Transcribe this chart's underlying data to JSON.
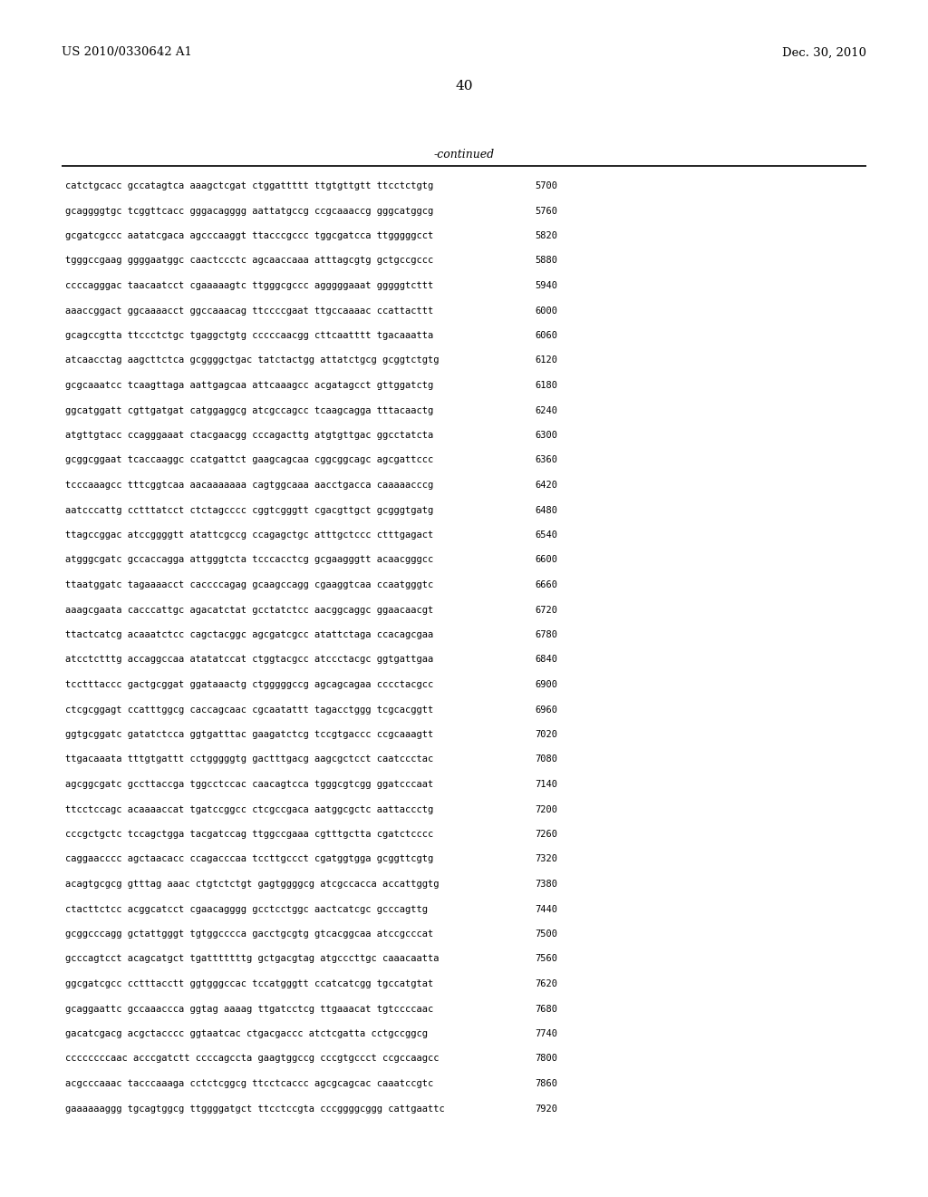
{
  "header_left": "US 2010/0330642 A1",
  "header_right": "Dec. 30, 2010",
  "page_number": "40",
  "continued_label": "-continued",
  "background_color": "#ffffff",
  "text_color": "#000000",
  "font_size": 7.5,
  "header_font_size": 9.5,
  "page_num_font_size": 11,
  "continued_font_size": 9,
  "sequence_lines": [
    [
      "catctgcacc gccatagtca aaagctcgat ctggattttt ttgtgttgtt ttcctctgtg",
      "5700"
    ],
    [
      "gcaggggtgc tcggttcacc gggacagggg aattatgccg ccgcaaaccg gggcatggcg",
      "5760"
    ],
    [
      "gcgatcgccc aatatcgaca agcccaaggt ttacccgccc tggcgatcca ttgggggcct",
      "5820"
    ],
    [
      "tgggccgaag ggggaatggc caactccctc agcaaccaaa atttagcgtg gctgccgccc",
      "5880"
    ],
    [
      "ccccagggac taacaatcct cgaaaaagtc ttgggcgccc agggggaaat gggggtcttt",
      "5940"
    ],
    [
      "aaaccggact ggcaaaacct ggccaaacag ttccccgaat ttgccaaaac ccattacttt",
      "6000"
    ],
    [
      "gcagccgtta ttccctctgc tgaggctgtg cccccaacgg cttcaatttt tgacaaatta",
      "6060"
    ],
    [
      "atcaacctag aagcttctca gcggggctgac tatctactgg attatctgcg gcggtctgtg",
      "6120"
    ],
    [
      "gcgcaaatcc tcaagttaga aattgagcaa attcaaagcc acgatagcct gttggatctg",
      "6180"
    ],
    [
      "ggcatggatt cgttgatgat catggaggcg atcgccagcc tcaagcagga tttacaactg",
      "6240"
    ],
    [
      "atgttgtacc ccagggaaat ctacgaacgg cccagacttg atgtgttgac ggcctatcta",
      "6300"
    ],
    [
      "gcggcggaat tcaccaaggc ccatgattct gaagcagcaa cggcggcagc agcgattccc",
      "6360"
    ],
    [
      "tcccaaagcc tttcggtcaa aacaaaaaaa cagtggcaaa aacctgacca caaaaacccg",
      "6420"
    ],
    [
      "aatcccattg cctttatcct ctctagcccc cggtcgggtt cgacgttgct gcgggtgatg",
      "6480"
    ],
    [
      "ttagccggac atccggggtt atattcgccg ccagagctgc atttgctccc ctttgagact",
      "6540"
    ],
    [
      "atgggcgatc gccaccagga attgggtcta tcccacctcg gcgaagggtt acaacgggcc",
      "6600"
    ],
    [
      "ttaatggatc tagaaaacct caccccagag gcaagccagg cgaaggtcaa ccaatgggtc",
      "6660"
    ],
    [
      "aaagcgaata cacccattgc agacatctat gcctatctcc aacggcaggc ggaacaacgt",
      "6720"
    ],
    [
      "ttactcatcg acaaatctcc cagctacggc agcgatcgcc atattctaga ccacagcgaa",
      "6780"
    ],
    [
      "atcctctttg accaggccaa atatatccat ctggtacgcc atccctacgc ggtgattgaa",
      "6840"
    ],
    [
      "tcctttaccc gactgcggat ggataaactg ctgggggccg agcagcagaa cccctacgcc",
      "6900"
    ],
    [
      "ctcgcggagt ccatttggcg caccagcaac cgcaatattt tagacctggg tcgcacggtt",
      "6960"
    ],
    [
      "ggtgcggatc gatatctcca ggtgatttac gaagatctcg tccgtgaccc ccgcaaagtt",
      "7020"
    ],
    [
      "ttgacaaata tttgtgattt cctgggggtg gactttgacg aagcgctcct caatccctac",
      "7080"
    ],
    [
      "agcggcgatc gccttaccga tggcctccac caacagtcca tgggcgtcgg ggatcccaat",
      "7140"
    ],
    [
      "ttcctccagc acaaaaccat tgatccggcc ctcgccgaca aatggcgctc aattaccctg",
      "7200"
    ],
    [
      "cccgctgctc tccagctgga tacgatccag ttggccgaaa cgtttgctta cgatctcccc",
      "7260"
    ],
    [
      "caggaacccc agctaacacc ccagacccaa tccttgccct cgatggtgga gcggttcgtg",
      "7320"
    ],
    [
      "acagtgcgcg gtttag aaac ctgtctctgt gagtggggcg atcgccacca accattggtg",
      "7380"
    ],
    [
      "ctacttctcc acggcatcct cgaacagggg gcctcctggc aactcatcgc gcccagttg",
      "7440"
    ],
    [
      "gcggcccagg gctattgggt tgtggcccca gacctgcgtg gtcacggcaa atccgcccat",
      "7500"
    ],
    [
      "gcccagtcct acagcatgct tgatttttttg gctgacgtag atgcccttgc caaacaatta",
      "7560"
    ],
    [
      "ggcgatcgcc cctttacctt ggtgggccac tccatgggtt ccatcatcgg tgccatgtat",
      "7620"
    ],
    [
      "gcaggaattc gccaaaccca ggtag aaaag ttgatcctcg ttgaaacat tgtccccaac",
      "7680"
    ],
    [
      "gacatcgacg acgctacccc ggtaatcac ctgacgaccc atctcgatta cctgccggcg",
      "7740"
    ],
    [
      "ccccccccaac acccgatctt ccccagccta gaagtggccg cccgtgccct ccgccaagcc",
      "7800"
    ],
    [
      "acgcccaaac tacccaaaga cctctcggcg ttcctcaccc agcgcagcac caaatccgtc",
      "7860"
    ],
    [
      "gaaaaaaggg tgcagtggcg ttggggatgct ttcctccgta cccggggcggg cattgaattc",
      "7920"
    ]
  ]
}
